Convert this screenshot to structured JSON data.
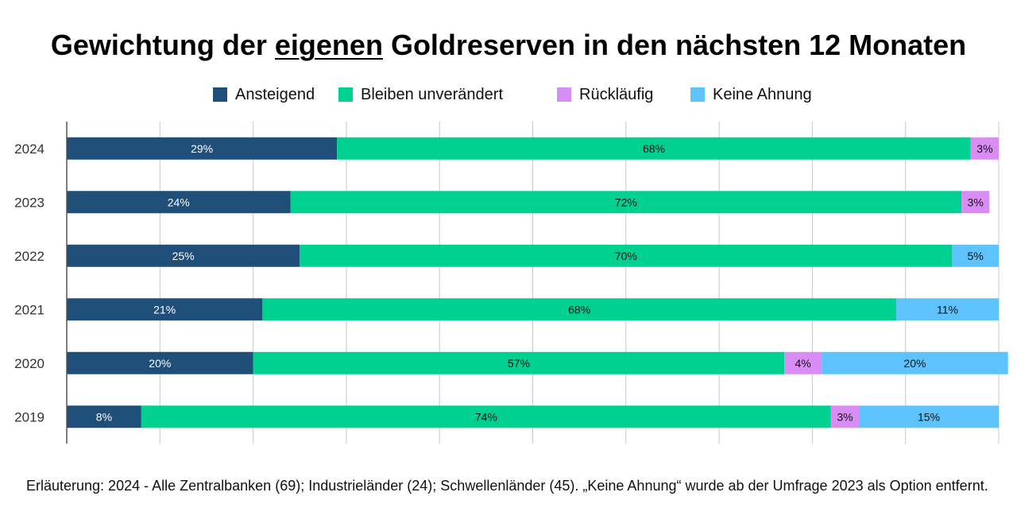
{
  "chart_data": {
    "type": "bar",
    "orientation": "horizontal",
    "stacked": true,
    "title_parts": [
      {
        "text": "Gewichtung der ",
        "underline": false
      },
      {
        "text": "eigenen",
        "underline": true
      },
      {
        "text": " Goldreserven in den nächsten 12 Monaten",
        "underline": false
      }
    ],
    "categories": [
      "2024",
      "2023",
      "2022",
      "2021",
      "2020",
      "2019"
    ],
    "series": [
      {
        "name": "Ansteigend",
        "color": "#1f4e79",
        "label_color": "#ffffff",
        "values": [
          29,
          24,
          25,
          21,
          20,
          8
        ]
      },
      {
        "name": "Bleiben unverändert",
        "color": "#00d190",
        "label_color": "#111111",
        "values": [
          68,
          72,
          70,
          68,
          57,
          74
        ]
      },
      {
        "name": "Rückläufig",
        "color": "#d98cf4",
        "label_color": "#111111",
        "values": [
          3,
          3,
          0,
          0,
          4,
          3
        ]
      },
      {
        "name": "Keine Ahnung",
        "color": "#5ec3fb",
        "label_color": "#111111",
        "values": [
          0,
          0,
          5,
          11,
          20,
          15
        ]
      }
    ],
    "value_suffix": "%",
    "xlim": [
      0,
      100
    ],
    "grid": true,
    "legend_position": "top"
  },
  "caption": "Erläuterung: 2024 - Alle Zentralbanken (69); Industrieländer (24); Schwellenländer (45). „Keine Ahnung“ wurde ab der Umfrage 2023 als Option entfernt."
}
